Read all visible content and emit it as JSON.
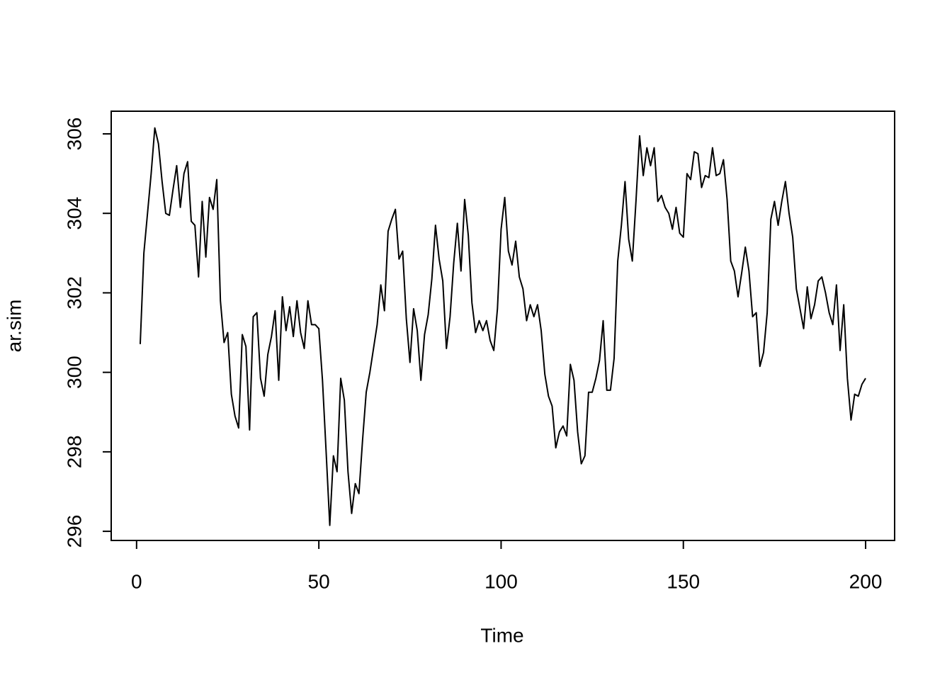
{
  "chart_data": {
    "type": "line",
    "x_label": "Time",
    "y_label": "ar.sim",
    "color": "#000000",
    "x": [
      1,
      2,
      3,
      4,
      5,
      6,
      7,
      8,
      9,
      10,
      11,
      12,
      13,
      14,
      15,
      16,
      17,
      18,
      19,
      20,
      21,
      22,
      23,
      24,
      25,
      26,
      27,
      28,
      29,
      30,
      31,
      32,
      33,
      34,
      35,
      36,
      37,
      38,
      39,
      40,
      41,
      42,
      43,
      44,
      45,
      46,
      47,
      48,
      49,
      50,
      51,
      52,
      53,
      54,
      55,
      56,
      57,
      58,
      59,
      60,
      61,
      62,
      63,
      64,
      65,
      66,
      67,
      68,
      69,
      70,
      71,
      72,
      73,
      74,
      75,
      76,
      77,
      78,
      79,
      80,
      81,
      82,
      83,
      84,
      85,
      86,
      87,
      88,
      89,
      90,
      91,
      92,
      93,
      94,
      95,
      96,
      97,
      98,
      99,
      100,
      101,
      102,
      103,
      104,
      105,
      106,
      107,
      108,
      109,
      110,
      111,
      112,
      113,
      114,
      115,
      116,
      117,
      118,
      119,
      120,
      121,
      122,
      123,
      124,
      125,
      126,
      127,
      128,
      129,
      130,
      131,
      132,
      133,
      134,
      135,
      136,
      137,
      138,
      139,
      140,
      141,
      142,
      143,
      144,
      145,
      146,
      147,
      148,
      149,
      150,
      151,
      152,
      153,
      154,
      155,
      156,
      157,
      158,
      159,
      160,
      161,
      162,
      163,
      164,
      165,
      166,
      167,
      168,
      169,
      170,
      171,
      172,
      173,
      174,
      175,
      176,
      177,
      178,
      179,
      180,
      181,
      182,
      183,
      184,
      185,
      186,
      187,
      188,
      189,
      190,
      191,
      192,
      193,
      194,
      195,
      196,
      197,
      198,
      199,
      200
    ],
    "values": [
      300.71,
      303.0,
      304.0,
      305.0,
      306.15,
      305.75,
      304.8,
      304.0,
      303.95,
      304.6,
      305.2,
      304.15,
      305.0,
      305.3,
      303.8,
      303.7,
      302.4,
      304.3,
      302.9,
      304.4,
      304.1,
      304.85,
      301.8,
      300.75,
      301.0,
      299.45,
      298.9,
      298.6,
      300.95,
      300.65,
      298.55,
      301.4,
      301.5,
      299.85,
      299.4,
      300.45,
      300.9,
      301.55,
      299.8,
      301.9,
      301.05,
      301.65,
      300.9,
      301.8,
      301.0,
      300.6,
      301.8,
      301.2,
      301.2,
      301.1,
      299.8,
      298.0,
      296.15,
      297.9,
      297.5,
      299.85,
      299.3,
      297.5,
      296.45,
      297.2,
      296.95,
      298.3,
      299.5,
      300.0,
      300.6,
      301.2,
      302.2,
      301.55,
      303.55,
      303.85,
      304.1,
      302.85,
      303.05,
      301.35,
      300.25,
      301.6,
      301.05,
      299.8,
      300.95,
      301.45,
      302.35,
      303.7,
      302.85,
      302.3,
      300.6,
      301.4,
      302.75,
      303.75,
      302.55,
      304.35,
      303.45,
      301.75,
      301.0,
      301.3,
      301.05,
      301.3,
      300.8,
      300.55,
      301.6,
      303.6,
      304.4,
      303.05,
      302.7,
      303.3,
      302.4,
      302.1,
      301.3,
      301.7,
      301.4,
      301.7,
      301.05,
      299.95,
      299.4,
      299.15,
      298.1,
      298.5,
      298.65,
      298.4,
      300.2,
      299.8,
      298.5,
      297.7,
      297.9,
      299.5,
      299.5,
      299.85,
      300.3,
      301.3,
      299.55,
      299.55,
      300.35,
      302.8,
      303.7,
      304.8,
      303.35,
      302.8,
      304.3,
      305.95,
      304.95,
      305.65,
      305.2,
      305.65,
      304.3,
      304.45,
      304.15,
      304.0,
      303.6,
      304.15,
      303.5,
      303.4,
      305.0,
      304.85,
      305.55,
      305.5,
      304.65,
      304.95,
      304.9,
      305.65,
      304.95,
      305.0,
      305.35,
      304.35,
      302.8,
      302.55,
      301.9,
      302.5,
      303.15,
      302.55,
      301.4,
      301.5,
      300.15,
      300.5,
      301.5,
      303.85,
      304.3,
      303.7,
      304.3,
      304.8,
      304.0,
      303.4,
      302.1,
      301.6,
      301.1,
      302.15,
      301.35,
      301.7,
      302.3,
      302.4,
      302.0,
      301.5,
      301.2,
      302.2,
      300.55,
      301.7,
      299.85,
      298.8,
      299.45,
      299.4,
      299.7,
      299.85
    ],
    "xlim": [
      -6.96,
      207.96
    ],
    "xticks": [
      0,
      50,
      100,
      150,
      200
    ],
    "ylim": [
      295.77,
      306.57
    ],
    "yticks": [
      296,
      298,
      300,
      302,
      304,
      306
    ]
  }
}
